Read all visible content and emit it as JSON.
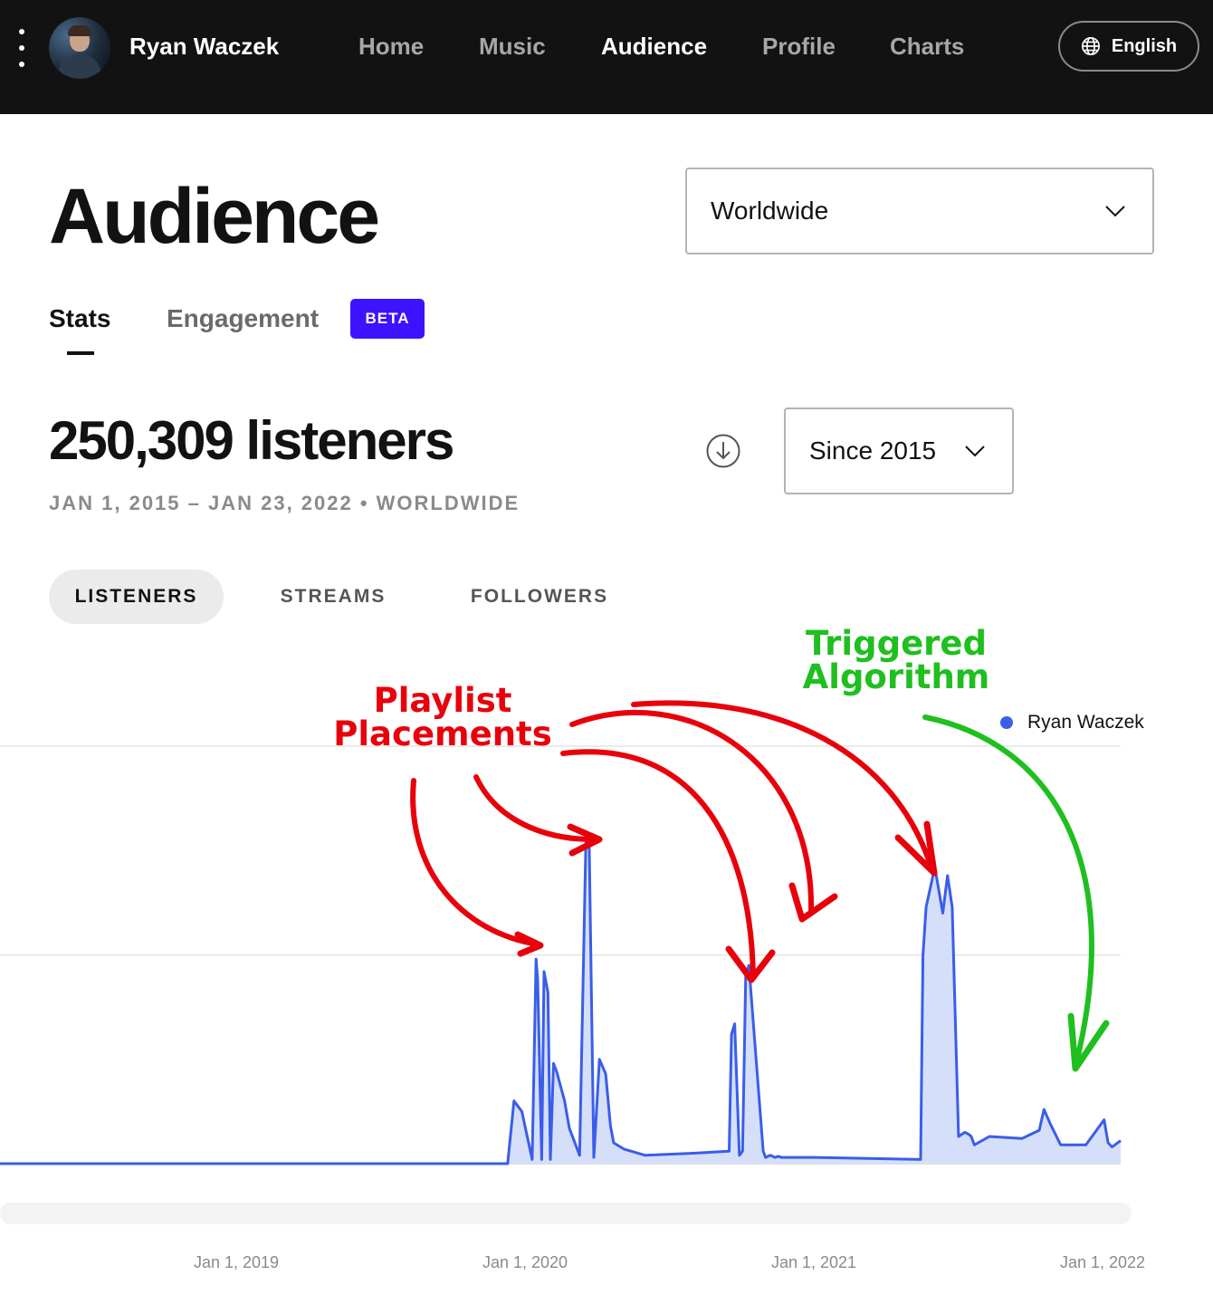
{
  "nav": {
    "artist_name": "Ryan Waczek",
    "links": [
      "Home",
      "Music",
      "Audience",
      "Profile",
      "Charts"
    ],
    "active_link": "Audience",
    "language": "English"
  },
  "page": {
    "title": "Audience",
    "region_select": "Worldwide",
    "tabs": {
      "stats": "Stats",
      "engagement": "Engagement",
      "beta_badge": "BETA"
    },
    "listeners_total": "250,309 listeners",
    "date_range_line": "JAN 1, 2015 – JAN 23, 2022 • WORLDWIDE",
    "period_select": "Since 2015",
    "metric_pills": [
      "LISTENERS",
      "STREAMS",
      "FOLLOWERS"
    ],
    "active_metric": "LISTENERS"
  },
  "annotations": {
    "red_label_line1": "Playlist",
    "red_label_line2": "Placements",
    "green_label_line1": "Triggered",
    "green_label_line2": "Algorithm",
    "red_color": "#e8000b",
    "green_color": "#1fbf1f"
  },
  "colors": {
    "nav_bg": "#121212",
    "beta": "#3d12ff",
    "line": "#3a5ee8",
    "area": "#d6dffa"
  },
  "chart_data": {
    "type": "area",
    "x_axis_type": "date",
    "x_tick_labels": [
      "Jan 1, 2019",
      "Jan 1, 2020",
      "Jan 1, 2021",
      "Jan 1, 2022"
    ],
    "xlim": [
      "2018-03-01",
      "2022-01-23"
    ],
    "ylim": [
      0,
      2000
    ],
    "y_tick_labels_visible": false,
    "grid": "horizontal",
    "legend": "top-right",
    "series": [
      {
        "name": "Ryan Waczek",
        "x": [
          "2018-03-01",
          "2019-12-10",
          "2019-12-18",
          "2019-12-28",
          "2020-01-10",
          "2020-01-15",
          "2020-01-17",
          "2020-01-22",
          "2020-01-25",
          "2020-01-30",
          "2020-02-02",
          "2020-02-06",
          "2020-02-10",
          "2020-02-20",
          "2020-02-26",
          "2020-03-10",
          "2020-03-18",
          "2020-03-22",
          "2020-03-28",
          "2020-04-04",
          "2020-04-12",
          "2020-04-18",
          "2020-04-22",
          "2020-05-05",
          "2020-06-01",
          "2020-08-01",
          "2020-09-15",
          "2020-09-18",
          "2020-09-22",
          "2020-09-28",
          "2020-10-02",
          "2020-10-06",
          "2020-10-10",
          "2020-10-28",
          "2020-10-31",
          "2020-11-06",
          "2020-11-12",
          "2020-11-16",
          "2020-11-20",
          "2021-01-01",
          "2021-05-15",
          "2021-05-18",
          "2021-05-22",
          "2021-06-02",
          "2021-06-12",
          "2021-06-18",
          "2021-06-24",
          "2021-07-02",
          "2021-07-10",
          "2021-07-15",
          "2021-07-18",
          "2021-07-22",
          "2021-08-10",
          "2021-09-20",
          "2021-10-12",
          "2021-10-18",
          "2021-10-26",
          "2021-11-08",
          "2021-12-10",
          "2022-01-02",
          "2022-01-07",
          "2022-01-12",
          "2022-01-23"
        ],
        "values": [
          0,
          0,
          300,
          250,
          20,
          980,
          880,
          20,
          920,
          820,
          20,
          480,
          440,
          300,
          170,
          40,
          1560,
          1560,
          30,
          500,
          430,
          180,
          100,
          70,
          40,
          50,
          60,
          620,
          670,
          40,
          60,
          900,
          950,
          60,
          30,
          40,
          30,
          35,
          30,
          30,
          20,
          1000,
          1230,
          1420,
          1200,
          1380,
          1230,
          130,
          150,
          140,
          130,
          90,
          130,
          120,
          160,
          260,
          190,
          90,
          90,
          210,
          100,
          80,
          110
        ]
      }
    ]
  }
}
